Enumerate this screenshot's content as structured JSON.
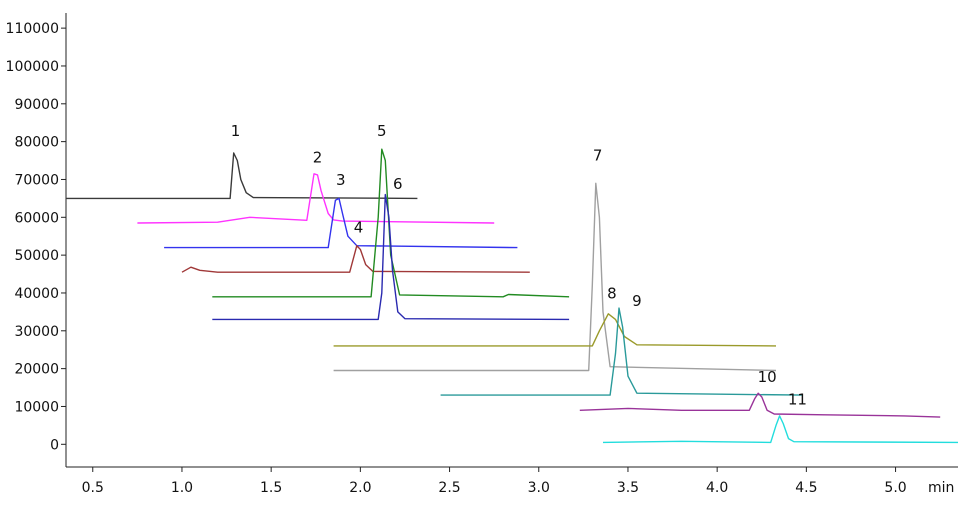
{
  "chart_data": {
    "type": "line",
    "title": "",
    "xlabel": "",
    "ylabel": "",
    "x_unit": "min",
    "xlim": [
      0.35,
      5.35
    ],
    "ylim": [
      -6000,
      114000
    ],
    "x_ticks": [
      0.5,
      1.0,
      1.5,
      2.0,
      2.5,
      3.0,
      3.5,
      4.0,
      4.5,
      5.0
    ],
    "x_tick_labels": [
      "0.5",
      "1.0",
      "1.5",
      "2.0",
      "2.5",
      "3.0",
      "3.5",
      "4.0",
      "4.5",
      "5.0"
    ],
    "y_ticks": [
      0,
      10000,
      20000,
      30000,
      40000,
      50000,
      60000,
      70000,
      80000,
      90000,
      100000,
      110000
    ],
    "y_tick_labels": [
      "0",
      "10000",
      "20000",
      "30000",
      "40000",
      "50000",
      "60000",
      "70000",
      "80000",
      "90000",
      "100000",
      "110000"
    ],
    "grid": false,
    "series": [
      {
        "label": "1",
        "color": "#3a3a3a",
        "x": [
          0.35,
          1.27,
          1.29,
          1.31,
          1.33,
          1.36,
          1.4,
          2.32
        ],
        "y": [
          65000,
          65000,
          77000,
          75000,
          70000,
          66500,
          65200,
          65000
        ],
        "peak_label_pos": [
          1.3,
          81500
        ]
      },
      {
        "label": "2",
        "color": "#ff33ff",
        "x": [
          0.75,
          1.2,
          1.38,
          1.7,
          1.74,
          1.76,
          1.78,
          1.82,
          1.85,
          1.9,
          2.75
        ],
        "y": [
          58500,
          58700,
          60000,
          59200,
          71500,
          71200,
          67000,
          61000,
          59300,
          59000,
          58500
        ],
        "peak_label_pos": [
          1.76,
          74500
        ]
      },
      {
        "label": "3",
        "color": "#3333ee",
        "x": [
          0.9,
          1.82,
          1.86,
          1.88,
          1.9,
          1.93,
          1.98,
          2.88
        ],
        "y": [
          52000,
          52000,
          64500,
          65000,
          61000,
          55000,
          52500,
          52000
        ],
        "peak_label_pos": [
          1.89,
          68500
        ]
      },
      {
        "label": "4",
        "color": "#a03838",
        "x": [
          1.0,
          1.05,
          1.1,
          1.2,
          1.94,
          1.98,
          2.0,
          2.03,
          2.07,
          2.95
        ],
        "y": [
          45500,
          46800,
          46000,
          45500,
          45500,
          52500,
          51500,
          47500,
          45700,
          45500
        ],
        "peak_label_pos": [
          1.99,
          56000
        ]
      },
      {
        "label": "5",
        "color": "#228b22",
        "x": [
          1.17,
          2.06,
          2.1,
          2.12,
          2.14,
          2.17,
          2.22,
          2.8,
          2.83,
          3.17
        ],
        "y": [
          39000,
          39000,
          60000,
          78000,
          75000,
          50000,
          39500,
          39000,
          39600,
          39000
        ],
        "peak_label_pos": [
          2.12,
          81500
        ]
      },
      {
        "label": "6",
        "color": "#2a2ab0",
        "x": [
          1.17,
          2.1,
          2.12,
          2.14,
          2.16,
          2.18,
          2.21,
          2.25,
          3.17
        ],
        "y": [
          33000,
          33000,
          40000,
          66000,
          60000,
          46000,
          35000,
          33200,
          33000
        ],
        "peak_label_pos": [
          2.21,
          67500
        ]
      },
      {
        "label": "7",
        "color": "#a0a0a0",
        "x": [
          1.85,
          3.28,
          3.3,
          3.32,
          3.34,
          3.36,
          3.4,
          4.33
        ],
        "y": [
          19500,
          19500,
          42000,
          69000,
          60000,
          35000,
          20500,
          19500
        ],
        "peak_label_pos": [
          3.33,
          75000
        ]
      },
      {
        "label": "8",
        "color": "#9a9a2a",
        "x": [
          1.85,
          3.3,
          3.34,
          3.39,
          3.43,
          3.48,
          3.55,
          4.33
        ],
        "y": [
          26000,
          26000,
          30000,
          34500,
          33000,
          28500,
          26300,
          26000
        ],
        "peak_label_pos": [
          3.41,
          38500
        ]
      },
      {
        "label": "9",
        "color": "#2a9a9a",
        "x": [
          2.45,
          3.4,
          3.43,
          3.45,
          3.47,
          3.5,
          3.55,
          4.48
        ],
        "y": [
          13000,
          13000,
          24000,
          36000,
          31000,
          18000,
          13500,
          13000
        ],
        "peak_label_pos": [
          3.55,
          36500
        ]
      },
      {
        "label": "10",
        "color": "#993399",
        "x": [
          3.23,
          3.5,
          3.8,
          4.18,
          4.21,
          4.23,
          4.25,
          4.28,
          4.32,
          4.6,
          5.05,
          5.25
        ],
        "y": [
          9000,
          9500,
          9000,
          9000,
          12000,
          13500,
          12500,
          9000,
          8000,
          7800,
          7500,
          7200
        ],
        "peak_label_pos": [
          4.28,
          16500
        ]
      },
      {
        "label": "11",
        "color": "#22dddd",
        "x": [
          3.36,
          3.8,
          4.3,
          4.33,
          4.35,
          4.37,
          4.4,
          4.43,
          4.8,
          5.35
        ],
        "y": [
          500,
          800,
          500,
          5000,
          7500,
          5500,
          1500,
          700,
          600,
          500
        ],
        "peak_label_pos": [
          4.45,
          10500
        ]
      }
    ]
  }
}
